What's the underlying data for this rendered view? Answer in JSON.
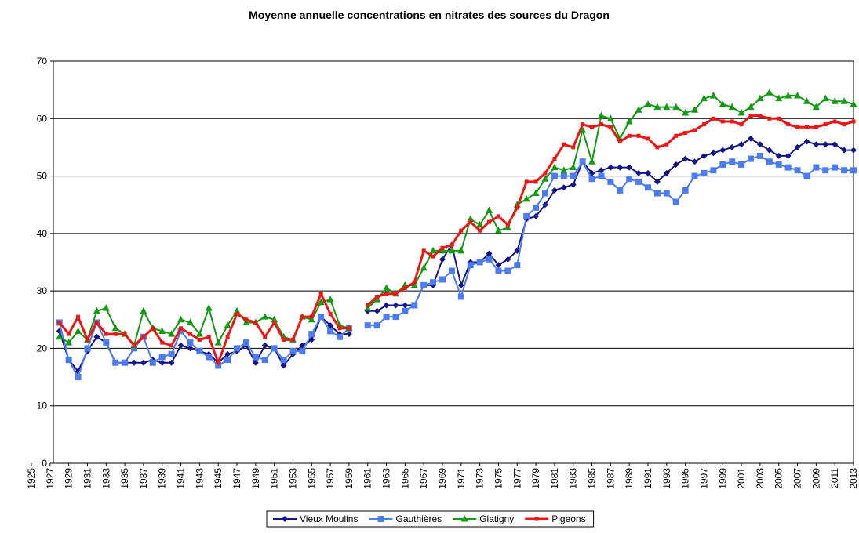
{
  "chart_data": {
    "type": "line",
    "title": "Moyenne annuelle concentrations en nitrates des sources du Dragon",
    "x": [
      1928,
      1929,
      1930,
      1931,
      1932,
      1933,
      1934,
      1935,
      1936,
      1937,
      1938,
      1939,
      1940,
      1941,
      1942,
      1943,
      1944,
      1945,
      1946,
      1947,
      1948,
      1949,
      1950,
      1951,
      1952,
      1953,
      1954,
      1955,
      1956,
      1957,
      1958,
      1959,
      1960,
      1961,
      1962,
      1963,
      1964,
      1965,
      1966,
      1967,
      1968,
      1969,
      1970,
      1971,
      1972,
      1973,
      1974,
      1975,
      1976,
      1977,
      1978,
      1979,
      1980,
      1981,
      1982,
      1983,
      1984,
      1985,
      1986,
      1987,
      1988,
      1989,
      1990,
      1991,
      1992,
      1993,
      1994,
      1995,
      1996,
      1997,
      1998,
      1999,
      2000,
      2001,
      2002,
      2003,
      2004,
      2005,
      2006,
      2007,
      2008,
      2009,
      2010,
      2011,
      2012,
      2013
    ],
    "series": [
      {
        "name": "Vieux Moulins",
        "color": "#14148c",
        "marker": "diamond",
        "values": [
          23,
          18,
          16,
          19.5,
          22,
          21,
          17.5,
          17.5,
          17.5,
          17.5,
          18,
          17.5,
          17.5,
          20.5,
          20,
          19.5,
          19,
          17.5,
          19,
          19.5,
          20.5,
          17.5,
          20.5,
          20,
          17,
          19,
          20.5,
          21.5,
          25.5,
          24,
          22.5,
          22.5,
          null,
          26.5,
          26.5,
          27.5,
          27.5,
          27.5,
          27.5,
          31,
          31,
          35.5,
          38,
          31,
          35,
          35,
          36.5,
          34.5,
          35.5,
          37,
          42.5,
          43,
          45,
          47.5,
          48,
          48.5,
          52.5,
          50.5,
          51,
          51.5,
          51.5,
          51.5,
          50.5,
          50.5,
          49,
          50.5,
          52,
          53,
          52.5,
          53.5,
          54,
          54.5,
          55,
          55.5,
          56.5,
          55.5,
          54.5,
          53.5,
          53.5,
          55,
          56,
          55.5,
          55.5,
          55.5,
          54.5,
          54.5
        ]
      },
      {
        "name": "Gauthières",
        "color": "#4c7cf0",
        "marker": "square",
        "values": [
          24.5,
          18,
          15,
          20,
          24.5,
          21,
          17.5,
          17.5,
          20,
          22,
          17.5,
          18.5,
          19,
          23,
          21,
          19.5,
          18.5,
          17,
          18,
          20,
          21,
          18.5,
          18,
          20,
          18,
          19.5,
          19.5,
          22.5,
          25.5,
          23,
          22,
          23.5,
          null,
          24,
          24,
          25.5,
          25.5,
          26.5,
          27.5,
          31,
          31.5,
          32,
          33.5,
          29,
          34.5,
          35,
          35.5,
          33.5,
          33.5,
          34.5,
          43,
          44.5,
          47,
          50,
          50,
          50,
          52.5,
          49.5,
          50,
          49,
          47.5,
          49.5,
          49,
          48,
          47,
          47,
          45.5,
          47.5,
          50,
          50.5,
          51,
          52,
          52.5,
          52,
          53,
          53.5,
          52.5,
          52,
          51.5,
          51,
          50,
          51.5,
          51,
          51.5,
          51,
          51
        ]
      },
      {
        "name": "Glatigny",
        "color": "#129a12",
        "marker": "triangle",
        "values": [
          22,
          21,
          23,
          21.5,
          26.5,
          27,
          23.5,
          22.5,
          20.5,
          26.5,
          23.5,
          23,
          22.5,
          25,
          24.5,
          22.5,
          27,
          21,
          24,
          26.5,
          24.5,
          24.5,
          25.5,
          25,
          22,
          21.5,
          25.5,
          25,
          28,
          28.5,
          24,
          23.5,
          null,
          27,
          28.5,
          30.5,
          29.5,
          31,
          31,
          34,
          37,
          37,
          37,
          37,
          42.5,
          41.5,
          44,
          40.5,
          41,
          45,
          46,
          47,
          49.5,
          51.5,
          51,
          51.5,
          58,
          52.5,
          60.5,
          60,
          56.5,
          59.5,
          61.5,
          62.5,
          62,
          62,
          62,
          61,
          61.5,
          63.5,
          64,
          62.5,
          62,
          61,
          62,
          63.5,
          64.5,
          63.5,
          64,
          64,
          63,
          62,
          63.5,
          63,
          63,
          62.5
        ]
      },
      {
        "name": "Pigeons",
        "color": "#ee1515",
        "marker": "smallsquare",
        "values": [
          24.5,
          22.5,
          25.5,
          21.5,
          24.5,
          22.5,
          22.5,
          22.5,
          20.5,
          22,
          23.5,
          21,
          20.5,
          23.5,
          22.5,
          21.5,
          22,
          17.5,
          22,
          26,
          25,
          24.5,
          22,
          24.5,
          21.5,
          21.5,
          25.5,
          25.5,
          29.5,
          26,
          23.5,
          23.5,
          null,
          27.5,
          29,
          29.5,
          29.5,
          30.5,
          31.5,
          37,
          36,
          37.5,
          38,
          40.5,
          42,
          40.5,
          42,
          43,
          41.5,
          44.5,
          49,
          49,
          50.5,
          53,
          55.5,
          55,
          59,
          58.5,
          59,
          58.5,
          56,
          57,
          57,
          56.5,
          55,
          55.5,
          57,
          57.5,
          58,
          59,
          60,
          59.5,
          59.5,
          59,
          60.5,
          60.5,
          60,
          60,
          59,
          58.5,
          58.5,
          58.5,
          59,
          59.5,
          59,
          59.5
        ]
      }
    ],
    "xlim": [
      1925,
      2013
    ],
    "xticks": [
      1925,
      1927,
      1929,
      1931,
      1933,
      1935,
      1937,
      1939,
      1941,
      1943,
      1945,
      1947,
      1949,
      1951,
      1953,
      1955,
      1957,
      1959,
      1961,
      1963,
      1965,
      1967,
      1969,
      1971,
      1973,
      1975,
      1977,
      1979,
      1981,
      1983,
      1985,
      1987,
      1989,
      1991,
      1993,
      1995,
      1997,
      1999,
      2001,
      2003,
      2005,
      2007,
      2009,
      2011,
      2013
    ],
    "ylim": [
      0,
      70
    ],
    "yticks": [
      0,
      10,
      20,
      30,
      40,
      50,
      60,
      70
    ],
    "grid": true,
    "legend": "bottom"
  }
}
